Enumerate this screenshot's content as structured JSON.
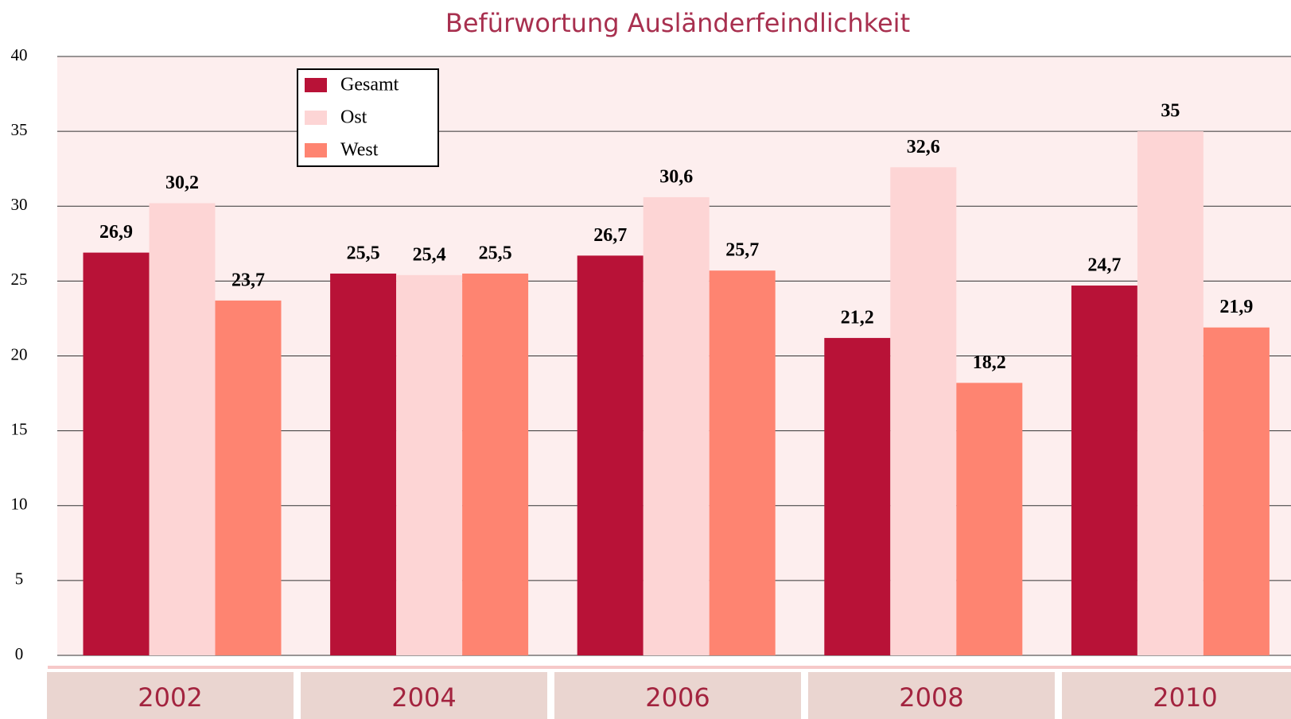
{
  "chart_data": {
    "type": "bar",
    "title": "Befürwortung Ausländerfeindlichkeit",
    "categories": [
      "2002",
      "2004",
      "2006",
      "2008",
      "2010"
    ],
    "series": [
      {
        "name": "Gesamt",
        "color": "#b81237",
        "values": [
          26.9,
          25.5,
          26.7,
          21.2,
          24.7
        ],
        "value_labels": [
          "26,9",
          "25,5",
          "26,7",
          "21,2",
          "24,7"
        ]
      },
      {
        "name": "Ost",
        "color": "#fdd5d5",
        "values": [
          30.2,
          25.4,
          30.6,
          32.6,
          35
        ],
        "value_labels": [
          "30,2",
          "25,4",
          "30,6",
          "32,6",
          "35"
        ]
      },
      {
        "name": "West",
        "color": "#fe8471",
        "values": [
          23.7,
          25.5,
          25.7,
          18.2,
          21.9
        ],
        "value_labels": [
          "23,7",
          "25,5",
          "25,7",
          "18,2",
          "21,9"
        ]
      }
    ],
    "ylim": [
      0,
      40
    ],
    "yticks": [
      0,
      5,
      10,
      15,
      20,
      25,
      30,
      35,
      40
    ],
    "grid": true,
    "legend": "upper left"
  }
}
